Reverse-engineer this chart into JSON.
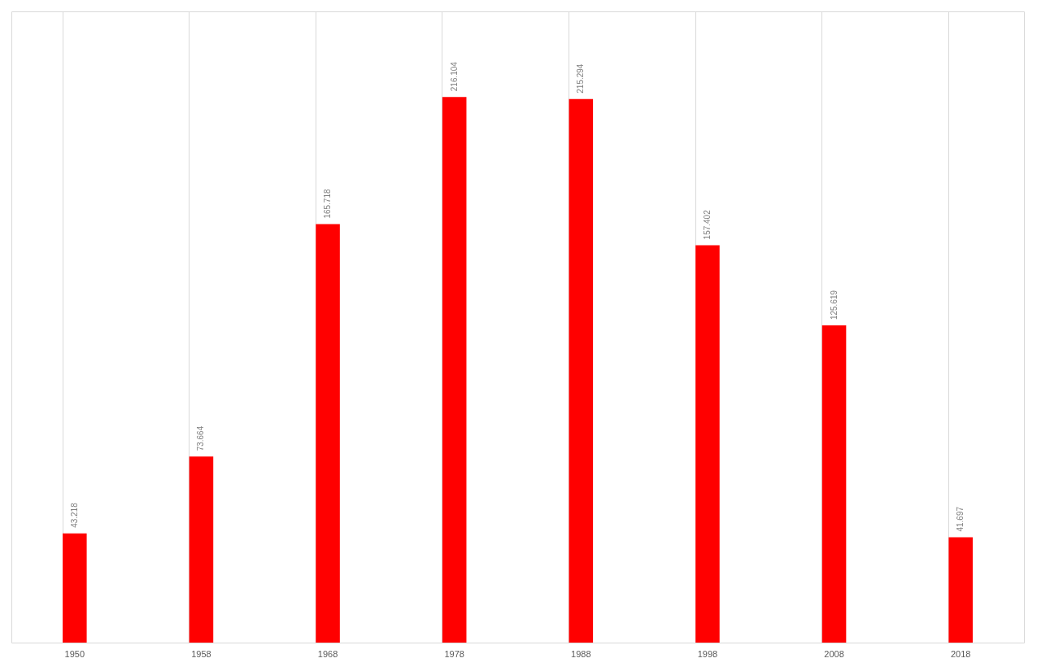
{
  "chart_data": {
    "type": "bar",
    "categories": [
      "1950",
      "1958",
      "1968",
      "1978",
      "1988",
      "1998",
      "2008",
      "2018"
    ],
    "values": [
      43.218,
      73.664,
      165.718,
      216.104,
      215.294,
      157.402,
      125.619,
      41.697
    ],
    "color": "#ff0000",
    "ylim": [
      0,
      250
    ],
    "tick_labels": "x",
    "grid": "x",
    "data_labels": true
  }
}
